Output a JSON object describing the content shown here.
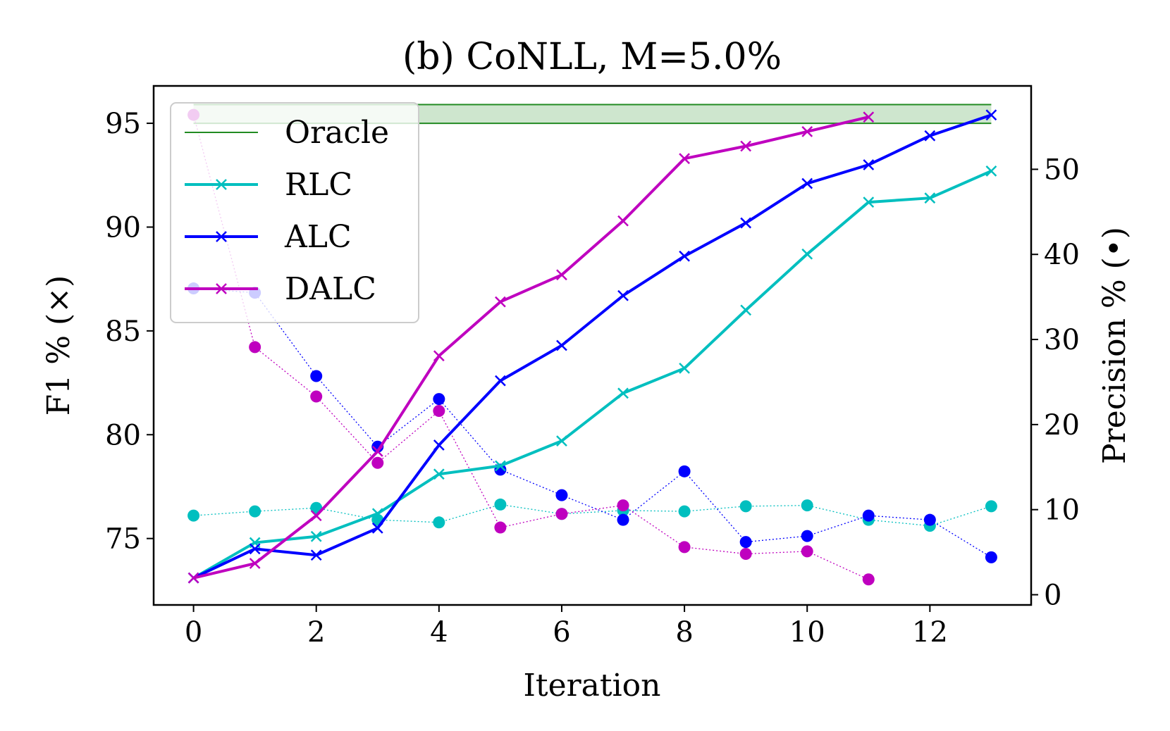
{
  "chart_data": {
    "type": "line",
    "title": "(b) CoNLL, M=5.0%",
    "xlabel": "Iteration",
    "ylabel": "F1 % (×)",
    "y2label": "Precision % (•)",
    "xlim": [
      -0.65,
      13.65
    ],
    "ylim": [
      71.8,
      96.8
    ],
    "y2lim": [
      -1.2,
      59.8
    ],
    "xticks": [
      0,
      2,
      4,
      6,
      8,
      10,
      12
    ],
    "yticks": [
      75,
      80,
      85,
      90,
      95
    ],
    "y2ticks": [
      0,
      10,
      20,
      30,
      40,
      50
    ],
    "legend_position": "upper-left",
    "oracle": {
      "name": "Oracle",
      "band": [
        95.0,
        95.9
      ],
      "x_range": [
        0,
        13
      ],
      "color": "#228b22"
    },
    "f1_series": [
      {
        "name": "RLC",
        "color": "#00bfbf",
        "x": [
          0,
          1,
          2,
          3,
          4,
          5,
          6,
          7,
          8,
          9,
          10,
          11,
          12,
          13
        ],
        "values": [
          73.1,
          74.8,
          75.1,
          76.2,
          78.1,
          78.5,
          79.7,
          82.0,
          83.2,
          86.0,
          88.7,
          91.2,
          91.4,
          92.7
        ]
      },
      {
        "name": "ALC",
        "color": "#0000ff",
        "x": [
          0,
          1,
          2,
          3,
          4,
          5,
          6,
          7,
          8,
          9,
          10,
          11,
          12,
          13
        ],
        "values": [
          73.1,
          74.5,
          74.2,
          75.5,
          79.5,
          82.6,
          84.3,
          86.7,
          88.6,
          90.2,
          92.1,
          93.0,
          94.4,
          95.4
        ]
      },
      {
        "name": "DALC",
        "color": "#bf00bf",
        "x": [
          0,
          1,
          2,
          3,
          4,
          5,
          6,
          7,
          8,
          9,
          10,
          11
        ],
        "values": [
          73.1,
          73.8,
          76.1,
          79.2,
          83.8,
          86.4,
          87.7,
          90.3,
          93.3,
          93.9,
          94.6,
          95.3
        ]
      }
    ],
    "precision_series": [
      {
        "name": "RLC",
        "color": "#00bfbf",
        "x": [
          0,
          1,
          2,
          3,
          4,
          5,
          6,
          7,
          8,
          9,
          10,
          11,
          12,
          13
        ],
        "values": [
          9.3,
          9.8,
          10.2,
          8.8,
          8.5,
          10.6,
          9.5,
          9.9,
          9.8,
          10.4,
          10.5,
          8.8,
          8.1,
          10.4
        ]
      },
      {
        "name": "ALC",
        "color": "#0000ff",
        "x": [
          0,
          1,
          2,
          3,
          4,
          5,
          6,
          7,
          8,
          9,
          10,
          11,
          12,
          13
        ],
        "values": [
          36.0,
          35.5,
          25.7,
          17.4,
          23.0,
          14.7,
          11.7,
          8.8,
          14.5,
          6.2,
          6.9,
          9.3,
          8.8,
          4.4
        ]
      },
      {
        "name": "DALC",
        "color": "#bf00bf",
        "x": [
          0,
          1,
          2,
          3,
          4,
          5,
          6,
          7,
          8,
          9,
          10,
          11
        ],
        "values": [
          56.4,
          29.1,
          23.3,
          15.5,
          21.6,
          7.9,
          9.5,
          10.5,
          5.6,
          4.8,
          5.1,
          1.8
        ]
      }
    ]
  }
}
